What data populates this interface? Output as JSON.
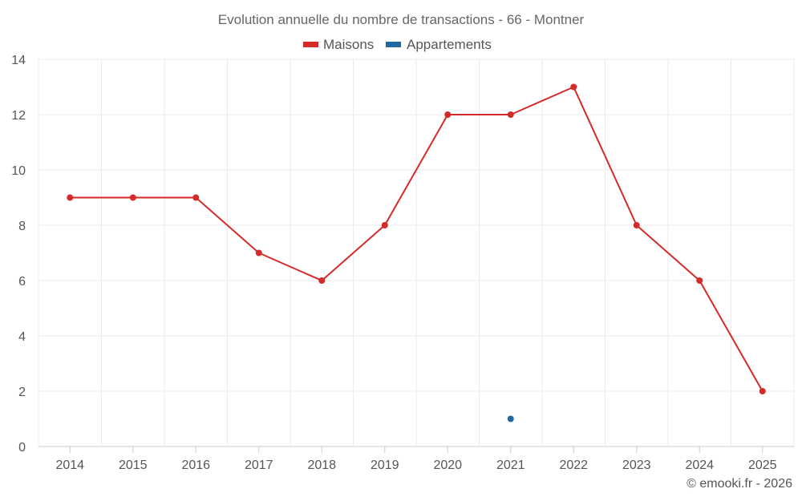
{
  "chart_data": {
    "type": "line",
    "title": "Evolution annuelle du nombre de transactions - 66 - Montner",
    "categories": [
      "2014",
      "2015",
      "2016",
      "2017",
      "2018",
      "2019",
      "2020",
      "2021",
      "2022",
      "2023",
      "2024",
      "2025"
    ],
    "series": [
      {
        "name": "Maisons",
        "color": "#d42a2a",
        "values": [
          9,
          9,
          9,
          7,
          6,
          8,
          12,
          12,
          13,
          8,
          6,
          2
        ]
      },
      {
        "name": "Appartements",
        "color": "#1f6aa5",
        "values": [
          null,
          null,
          null,
          null,
          null,
          null,
          null,
          1,
          null,
          null,
          null,
          null
        ]
      }
    ],
    "ylim": [
      0,
      14
    ],
    "yticks": [
      0,
      2,
      4,
      6,
      8,
      10,
      12,
      14
    ],
    "xlabel": "",
    "ylabel": "",
    "grid": true,
    "legend": "top-center"
  },
  "credit": "© emooki.fr - 2026"
}
